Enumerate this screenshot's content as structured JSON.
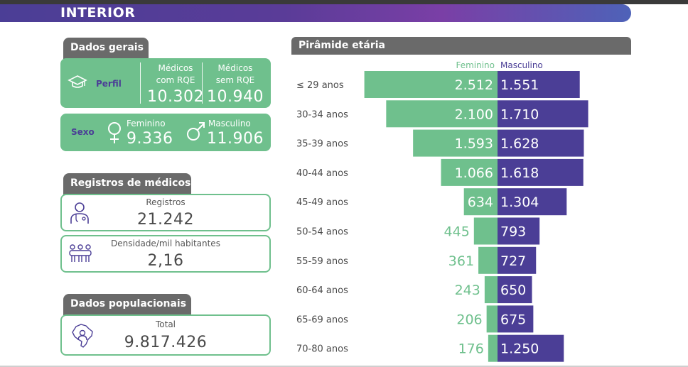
{
  "header": {
    "title": "INTERIOR"
  },
  "dados_gerais": {
    "tab_label": "Dados gerais",
    "perfil": {
      "label": "Perfil",
      "icon": "graduation-cap-icon",
      "com_rqe_label_1": "Médicos",
      "com_rqe_label_2": "com RQE",
      "com_rqe_value": "10.302",
      "sem_rqe_label_1": "Médicos",
      "sem_rqe_label_2": "sem RQE",
      "sem_rqe_value": "10.940"
    },
    "sexo": {
      "label": "Sexo",
      "feminino_label": "Feminino",
      "feminino_value": "9.336",
      "masculino_label": "Masculino",
      "masculino_value": "11.906"
    }
  },
  "registros": {
    "tab_label": "Registros de médicos",
    "registros_label": "Registros",
    "registros_value": "21.242",
    "densidade_label": "Densidade/mil habitantes",
    "densidade_value": "2,16"
  },
  "populacionais": {
    "tab_label": "Dados populacionais",
    "total_label": "Total",
    "total_value": "9.817.426"
  },
  "piramide": {
    "tab_label": "Pirâmide etária"
  },
  "colors": {
    "female": "#6fc08d",
    "male": "#4b3e96",
    "tab": "#6a6a6a",
    "banner": "#4b3e96"
  },
  "chart_data": {
    "type": "bar",
    "title": "Pirâmide etária",
    "categories": [
      "≤ 29 anos",
      "30-34 anos",
      "35-39 anos",
      "40-44 anos",
      "45-49 anos",
      "50-54 anos",
      "55-59 anos",
      "60-64 anos",
      "65-69 anos",
      "70-80 anos"
    ],
    "series": [
      {
        "name": "Feminino",
        "values": [
          2512,
          2100,
          1593,
          1066,
          634,
          445,
          361,
          243,
          206,
          176
        ],
        "labels": [
          "2.512",
          "2.100",
          "1.593",
          "1.066",
          "634",
          "445",
          "361",
          "243",
          "206",
          "176"
        ]
      },
      {
        "name": "Masculino",
        "values": [
          1551,
          1710,
          1628,
          1618,
          1304,
          793,
          727,
          650,
          675,
          1250
        ],
        "labels": [
          "1.551",
          "1.710",
          "1.628",
          "1.618",
          "1.304",
          "793",
          "727",
          "650",
          "675",
          "1.250"
        ]
      }
    ],
    "legend": "top-center",
    "grid": false
  }
}
